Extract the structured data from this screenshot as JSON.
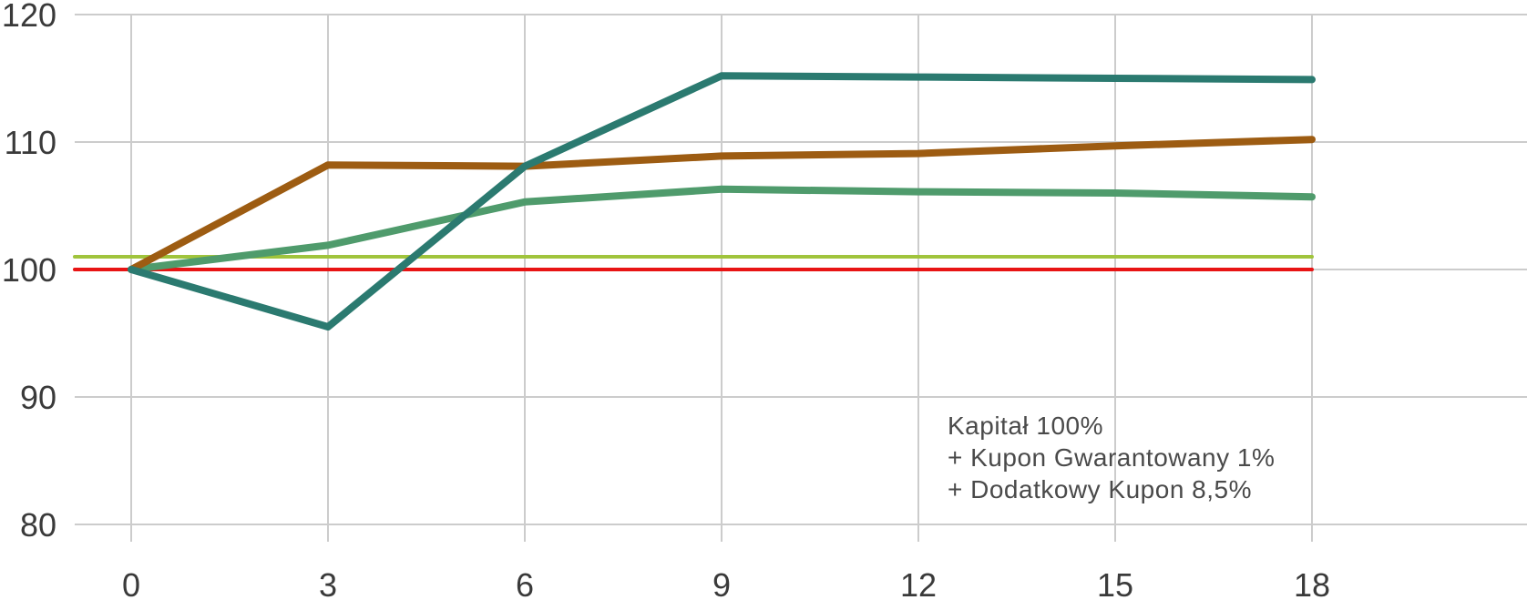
{
  "chart_data": {
    "type": "line",
    "title": "",
    "xlabel": "",
    "ylabel": "",
    "x": [
      0,
      3,
      6,
      9,
      12,
      15,
      18
    ],
    "xticks": [
      "0",
      "3",
      "6",
      "9",
      "12",
      "15",
      "18"
    ],
    "yticks": [
      80,
      90,
      100,
      110,
      120
    ],
    "ylim": [
      80,
      120
    ],
    "grid": true,
    "series": [
      {
        "name": "capital-100-red-line",
        "color": "#E81414",
        "width": 4,
        "extend_left": true,
        "values": [
          100,
          100,
          100,
          100,
          100,
          100,
          100
        ]
      },
      {
        "name": "guaranteed-coupon-lime-line",
        "color": "#A0C43C",
        "width": 4,
        "extend_left": true,
        "values": [
          101,
          101,
          101,
          101,
          101,
          101,
          101
        ]
      },
      {
        "name": "scenario-green-line",
        "color": "#4F9B6C",
        "width": 8,
        "extend_left": false,
        "values": [
          100,
          101.9,
          105.3,
          106.3,
          106.1,
          106.0,
          105.7
        ]
      },
      {
        "name": "scenario-brown-line",
        "color": "#9D5C12",
        "width": 8,
        "extend_left": false,
        "values": [
          100,
          108.2,
          108.1,
          108.9,
          109.1,
          109.7,
          110.2
        ]
      },
      {
        "name": "scenario-teal-line",
        "color": "#2B7A70",
        "width": 8,
        "extend_left": false,
        "values": [
          100,
          95.5,
          108.1,
          115.2,
          115.1,
          115.0,
          114.9
        ]
      }
    ],
    "annotation": {
      "lines": [
        "Kapitał 100%",
        "+ Kupon Gwarantowany 1%",
        "+ Dodatkowy Kupon 8,5%"
      ]
    },
    "colors": {
      "gridline": "#cccccc",
      "axis_text": "#3a3a3a",
      "annotation_text": "#4a4a4a",
      "background": "#ffffff"
    }
  }
}
